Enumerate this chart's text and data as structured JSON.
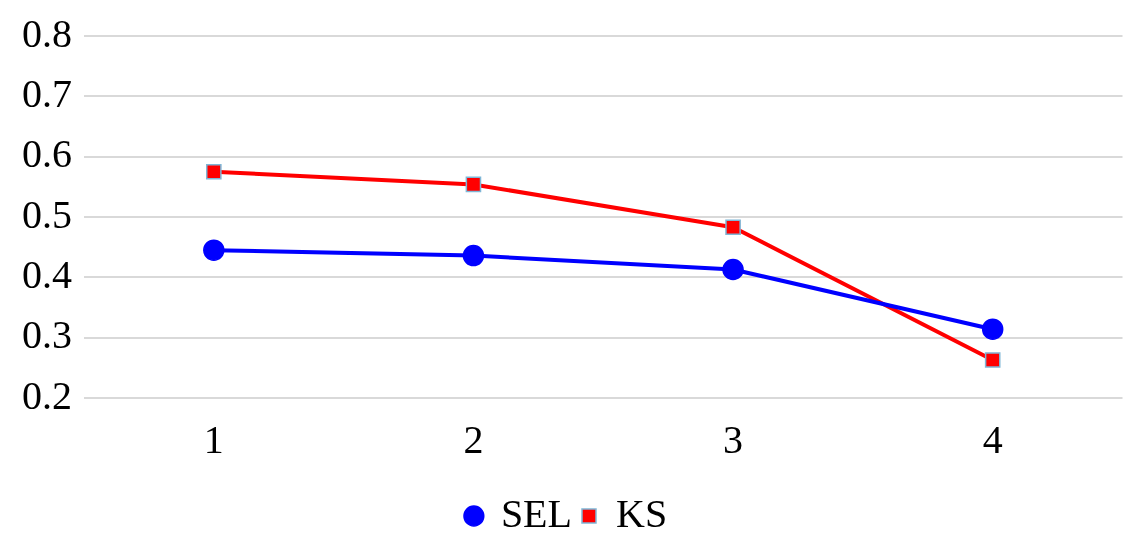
{
  "chart_data": {
    "type": "line",
    "categories": [
      "1",
      "2",
      "3",
      "4"
    ],
    "series": [
      {
        "name": "SEL",
        "color": "#0000ff",
        "marker": "circle",
        "values": [
          0.445,
          0.436,
          0.413,
          0.314
        ]
      },
      {
        "name": "KS",
        "color": "#ff0000",
        "marker": "square",
        "values": [
          0.575,
          0.554,
          0.483,
          0.263
        ]
      }
    ],
    "ylim": [
      0.2,
      0.8
    ],
    "yticks": [
      0.2,
      0.3,
      0.4,
      0.5,
      0.6,
      0.7,
      0.8
    ],
    "grid": "y",
    "legend": "bottom"
  }
}
